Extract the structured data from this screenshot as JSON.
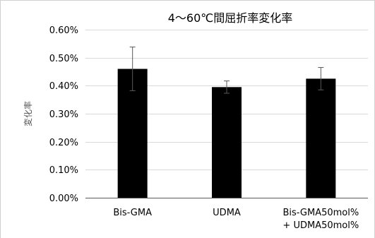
{
  "chart_data": {
    "type": "bar",
    "title": "4〜60℃間屈折率変化率",
    "xlabel": "",
    "ylabel": "変化率",
    "ylim": [
      0,
      0.6
    ],
    "yticks": [
      "0.00%",
      "0.10%",
      "0.20%",
      "0.30%",
      "0.40%",
      "0.50%",
      "0.60%"
    ],
    "grid": true,
    "legend": "none",
    "categories": [
      [
        "Bis-GMA"
      ],
      [
        "UDMA"
      ],
      [
        "Bis-GMA50mol%",
        "+ UDMA50mol%"
      ]
    ],
    "values": [
      0.46,
      0.395,
      0.425
    ],
    "error": [
      0.078,
      0.022,
      0.04
    ],
    "bar_color": "#000000"
  }
}
